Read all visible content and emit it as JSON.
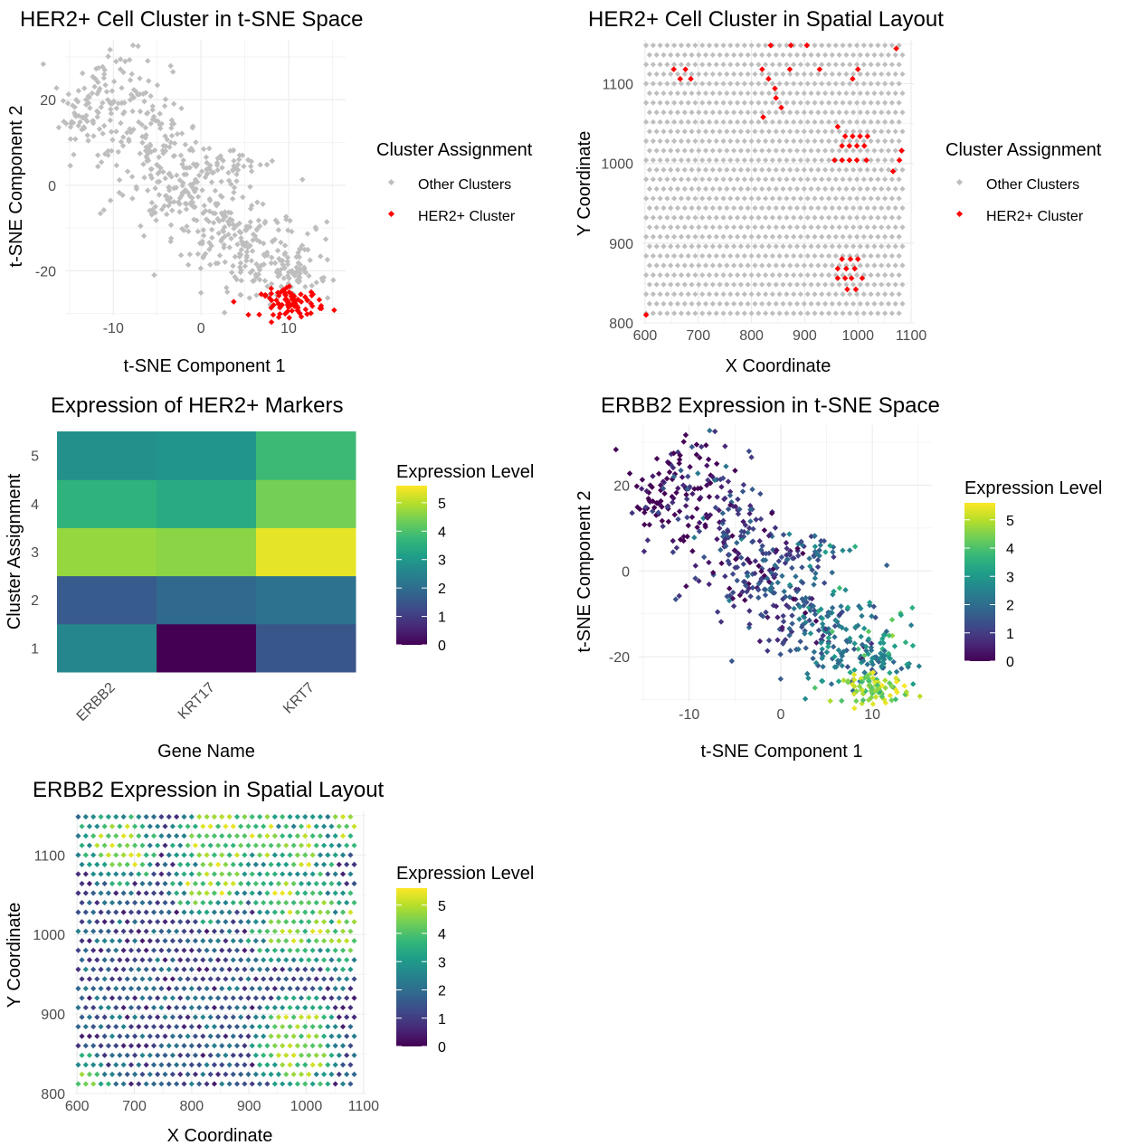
{
  "colors": {
    "other": "#bebebe",
    "her2": "#ff0000",
    "grid": "#ebebeb",
    "text": "#000000",
    "tick_text": "#4d4d4d",
    "viridis": [
      "#440154",
      "#482878",
      "#3e4a89",
      "#31688e",
      "#26828e",
      "#1f9e89",
      "#35b779",
      "#6ece58",
      "#b5de2b",
      "#fde725"
    ]
  },
  "legend_discrete": {
    "title": "Cluster Assignment",
    "items": [
      {
        "label": "Other Clusters",
        "color": "#bebebe"
      },
      {
        "label": "HER2+ Cluster",
        "color": "#ff0000"
      }
    ]
  },
  "legend_continuous": {
    "title": "Expression Level",
    "ticks": [
      "0",
      "1",
      "2",
      "3",
      "4",
      "5"
    ]
  },
  "chart_data": [
    {
      "id": "tsne_cluster",
      "type": "scatter",
      "title": "HER2+ Cell Cluster in t-SNE Space",
      "xlabel": "t-SNE Component 1",
      "ylabel": "t-SNE Component 2",
      "xlim": [
        -15.5,
        16.5
      ],
      "ylim": [
        -30.5,
        34
      ],
      "xticks": [
        -10,
        0,
        10
      ],
      "yticks": [
        -20,
        0,
        20
      ],
      "grid": true,
      "legend": "right",
      "series": [
        {
          "name": "Other Clusters",
          "points": "tsne_other_cells"
        },
        {
          "name": "HER2+ Cluster",
          "points": "tsne_her2_cells"
        }
      ]
    },
    {
      "id": "spatial_cluster",
      "type": "scatter",
      "title": "HER2+ Cell Cluster in Spatial Layout",
      "xlabel": "X Coordinate",
      "ylabel": "Y Coordinate",
      "xlim": [
        595,
        1105
      ],
      "ylim": [
        800,
        1155
      ],
      "xticks": [
        600,
        700,
        800,
        900,
        1000,
        1100
      ],
      "yticks": [
        800,
        900,
        1000,
        1100
      ],
      "grid": true,
      "legend": "right",
      "series": [
        {
          "name": "Other Clusters",
          "points": "hex grid spots"
        },
        {
          "name": "HER2+ Cluster",
          "points": [
            [
              602,
              810
            ],
            [
              654,
              1118
            ],
            [
              666,
              1106
            ],
            [
              676,
              1118
            ],
            [
              686,
              1106
            ],
            [
              836,
              1148
            ],
            [
              874,
              1148
            ],
            [
              904,
              1148
            ],
            [
              1072,
              1144
            ],
            [
              820,
              1118
            ],
            [
              872,
              1118
            ],
            [
              928,
              1118
            ],
            [
              1000,
              1118
            ],
            [
              990,
              1106
            ],
            [
              832,
              1106
            ],
            [
              844,
              1094
            ],
            [
              846,
              1082
            ],
            [
              856,
              1070
            ],
            [
              822,
              1058
            ],
            [
              962,
              1046
            ],
            [
              976,
              1034
            ],
            [
              990,
              1034
            ],
            [
              1004,
              1034
            ],
            [
              1018,
              1034
            ],
            [
              970,
              1022
            ],
            [
              984,
              1022
            ],
            [
              998,
              1022
            ],
            [
              1012,
              1022
            ],
            [
              1082,
              1016
            ],
            [
              956,
              1004
            ],
            [
              970,
              1004
            ],
            [
              984,
              1004
            ],
            [
              998,
              1004
            ],
            [
              1016,
              1004
            ],
            [
              1078,
              1004
            ],
            [
              1066,
              990
            ],
            [
              970,
              880
            ],
            [
              986,
              880
            ],
            [
              1000,
              880
            ],
            [
              962,
              868
            ],
            [
              978,
              868
            ],
            [
              994,
              868
            ],
            [
              962,
              856
            ],
            [
              976,
              856
            ],
            [
              988,
              856
            ],
            [
              1008,
              856
            ],
            [
              980,
              842
            ],
            [
              996,
              842
            ]
          ]
        }
      ]
    },
    {
      "id": "marker_heatmap",
      "type": "heatmap",
      "title": "Expression of HER2+ Markers",
      "xlabel": "Gene Name",
      "ylabel": "Cluster Assignment",
      "x": [
        "ERBB2",
        "KRT17",
        "KRT7"
      ],
      "y": [
        "1",
        "2",
        "3",
        "4",
        "5"
      ],
      "values": [
        [
          2.6,
          0.0,
          1.5
        ],
        [
          1.6,
          1.9,
          2.1
        ],
        [
          4.7,
          4.6,
          5.4
        ],
        [
          3.6,
          3.4,
          4.4
        ],
        [
          2.8,
          2.9,
          3.8
        ]
      ],
      "color_range": [
        0,
        5.6
      ],
      "legend": "right"
    },
    {
      "id": "tsne_erbb2",
      "type": "scatter",
      "title": "ERBB2 Expression in t-SNE Space",
      "xlabel": "t-SNE Component 1",
      "ylabel": "t-SNE Component 2",
      "xlim": [
        -15.5,
        16.5
      ],
      "ylim": [
        -30.5,
        34
      ],
      "xticks": [
        -10,
        0,
        10
      ],
      "yticks": [
        -20,
        0,
        20
      ],
      "grid": true,
      "legend": "right",
      "color_range": [
        0,
        5.6
      ],
      "series": [
        {
          "name": "Expression Level",
          "points": "tsne cells colored by ERBB2"
        }
      ]
    },
    {
      "id": "spatial_erbb2",
      "type": "scatter",
      "title": "ERBB2 Expression in Spatial Layout",
      "xlabel": "X Coordinate",
      "ylabel": "Y Coordinate",
      "xlim": [
        595,
        1105
      ],
      "ylim": [
        800,
        1155
      ],
      "xticks": [
        600,
        700,
        800,
        900,
        1000,
        1100
      ],
      "yticks": [
        800,
        900,
        1000,
        1100
      ],
      "grid": true,
      "legend": "right",
      "color_range": [
        0,
        5.6
      ],
      "series": [
        {
          "name": "Expression Level",
          "points": "hex grid spots colored by ERBB2"
        }
      ]
    }
  ]
}
